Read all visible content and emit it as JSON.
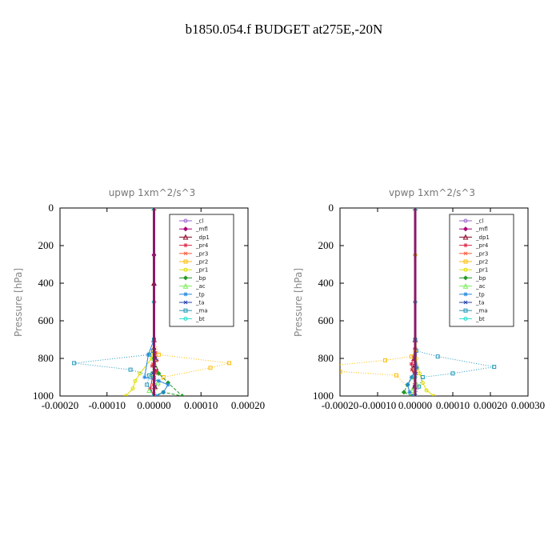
{
  "figure": {
    "title": "b1850.054.f  BUDGET at275E,-20N"
  },
  "legend_labels": [
    "_cl",
    "_mfl",
    "_dp1",
    "_pr4",
    "_pr3",
    "_pr2",
    "_pr1",
    "_bp",
    "_ac",
    "_tp",
    "_ta",
    "_ma",
    "_bt"
  ],
  "chart_data": [
    {
      "type": "line",
      "title": "upwp   1xm^2/s^3",
      "ylabel": "Pressure  [hPa]",
      "ylim": [
        1000,
        0
      ],
      "yticks": [
        0,
        200,
        400,
        600,
        800,
        1000
      ],
      "xlim": [
        -0.0002,
        0.0002
      ],
      "xticks": [
        "-0.00020",
        "-0.00010",
        "0.00000",
        "0.00010",
        "0.00020"
      ],
      "xtick_values": [
        -0.0002,
        -0.0001,
        0,
        0.0001,
        0.0002
      ],
      "legend": "top-right",
      "series": [
        {
          "name": "_cl",
          "color": "#9966cc",
          "x": [
            0,
            0,
            0,
            0,
            0
          ],
          "y": [
            0,
            250,
            500,
            750,
            1000
          ]
        },
        {
          "name": "_mfl",
          "color": "#aa0077",
          "x": [
            0,
            0,
            0,
            0,
            0
          ],
          "y": [
            0,
            250,
            500,
            750,
            1000
          ]
        },
        {
          "name": "_dp1",
          "color": "#880022",
          "x": [
            0,
            0,
            0,
            3e-06,
            4e-06,
            2e-06,
            0
          ],
          "y": [
            0,
            400,
            700,
            800,
            850,
            950,
            1000
          ]
        },
        {
          "name": "_pr4",
          "color": "#dd2244",
          "x": [
            0,
            0,
            3e-06,
            6e-06,
            -4e-06,
            5e-06,
            -3e-06,
            -8e-06,
            0
          ],
          "y": [
            0,
            700,
            770,
            810,
            840,
            870,
            900,
            960,
            1000
          ]
        },
        {
          "name": "_pr3",
          "color": "#ff5533",
          "x": [
            0,
            0,
            2e-06,
            -3e-06,
            3e-06,
            -2e-06,
            0
          ],
          "y": [
            0,
            700,
            780,
            830,
            880,
            940,
            1000
          ]
        },
        {
          "name": "_pr2",
          "color": "#ffbb00",
          "x": [
            0,
            0,
            1e-05,
            0.00016,
            0.00012,
            2e-05,
            0
          ],
          "y": [
            0,
            700,
            780,
            825,
            850,
            900,
            1000
          ]
        },
        {
          "name": "_pr1",
          "color": "#dddd00",
          "x": [
            0,
            0,
            -5e-06,
            -3e-05,
            -4e-05,
            -4.5e-05,
            -6e-05
          ],
          "y": [
            0,
            700,
            800,
            880,
            920,
            960,
            1000
          ]
        },
        {
          "name": "_bp",
          "color": "#229922",
          "x": [
            0,
            0,
            1e-05,
            3e-05,
            6e-05,
            2e-05,
            0
          ],
          "y": [
            0,
            800,
            880,
            930,
            1000,
            980,
            1000
          ]
        },
        {
          "name": "_ac",
          "color": "#77ee55",
          "x": [
            0,
            0,
            -5e-06,
            8e-06,
            -1e-05,
            0
          ],
          "y": [
            0,
            800,
            880,
            930,
            970,
            1000
          ]
        },
        {
          "name": "_tp",
          "color": "#2288dd",
          "x": [
            0,
            0,
            -1.2e-05,
            -2e-05,
            1e-05,
            3e-05,
            2e-05,
            5e-06
          ],
          "y": [
            0,
            700,
            780,
            900,
            920,
            940,
            980,
            1000
          ]
        },
        {
          "name": "_ta",
          "color": "#2244aa",
          "x": [
            0,
            0,
            3e-06,
            -3e-06,
            2e-06,
            0
          ],
          "y": [
            0,
            700,
            800,
            880,
            950,
            1000
          ]
        },
        {
          "name": "_ma",
          "color": "#2299bb",
          "x": [
            0,
            0,
            -2e-06,
            -1e-05,
            -0.00017,
            -5e-05,
            -1e-05,
            -1.5e-05,
            0
          ],
          "y": [
            0,
            700,
            760,
            780,
            825,
            860,
            890,
            940,
            1000
          ]
        },
        {
          "name": "_bt",
          "color": "#22ddcc",
          "x": [
            0,
            0,
            0,
            0
          ],
          "y": [
            0,
            500,
            900,
            1000
          ]
        }
      ]
    },
    {
      "type": "line",
      "title": "vpwp   1xm^2/s^3",
      "ylabel": "Pressure  [hPa]",
      "ylim": [
        1000,
        0
      ],
      "yticks": [
        0,
        200,
        400,
        600,
        800,
        1000
      ],
      "xlim": [
        -0.0002,
        0.0003
      ],
      "xticks": [
        "-0.00020",
        "-0.00010",
        "0.00000",
        "0.00010",
        "0.00020",
        "0.00030"
      ],
      "xtick_values": [
        -0.0002,
        -0.0001,
        0,
        0.0001,
        0.0002,
        0.0003
      ],
      "legend": "top-right",
      "series": [
        {
          "name": "_cl",
          "color": "#9966cc",
          "x": [
            0,
            0,
            0,
            0,
            0
          ],
          "y": [
            0,
            250,
            500,
            750,
            1000
          ]
        },
        {
          "name": "_mfl",
          "color": "#aa0077",
          "x": [
            0,
            0,
            0,
            0,
            0
          ],
          "y": [
            0,
            250,
            500,
            750,
            1000
          ]
        },
        {
          "name": "_dp1",
          "color": "#880022",
          "x": [
            0,
            0,
            -3e-06,
            -5e-06,
            -2e-06,
            0
          ],
          "y": [
            0,
            700,
            800,
            850,
            950,
            1000
          ]
        },
        {
          "name": "_pr4",
          "color": "#dd2244",
          "x": [
            0,
            0,
            -4e-06,
            -1e-05,
            -8e-06,
            -3e-06,
            0
          ],
          "y": [
            0,
            750,
            790,
            830,
            860,
            900,
            1000
          ]
        },
        {
          "name": "_pr3",
          "color": "#ff5533",
          "x": [
            0,
            0,
            -3e-06,
            2e-06,
            -2e-06,
            0
          ],
          "y": [
            0,
            700,
            800,
            870,
            940,
            1000
          ]
        },
        {
          "name": "_pr2",
          "color": "#ffbb00",
          "x": [
            0,
            0,
            -1e-05,
            -8e-05,
            -0.00026,
            -0.0002,
            -5e-05,
            0
          ],
          "y": [
            0,
            760,
            790,
            810,
            845,
            870,
            890,
            1000
          ]
        },
        {
          "name": "_pr1",
          "color": "#dddd00",
          "x": [
            0,
            0,
            3e-06,
            1.2e-05,
            2e-05,
            3e-05,
            5e-05
          ],
          "y": [
            0,
            250,
            800,
            880,
            930,
            970,
            1000
          ]
        },
        {
          "name": "_bp",
          "color": "#229922",
          "x": [
            0,
            0,
            -8e-06,
            -2e-05,
            -3e-05,
            -8e-06,
            0
          ],
          "y": [
            0,
            850,
            900,
            940,
            980,
            1000,
            1000
          ]
        },
        {
          "name": "_ac",
          "color": "#77ee55",
          "x": [
            0,
            0,
            -4e-06,
            5e-06,
            -8e-06,
            0
          ],
          "y": [
            0,
            850,
            900,
            940,
            970,
            1000
          ]
        },
        {
          "name": "_tp",
          "color": "#2288dd",
          "x": [
            0,
            0,
            5e-06,
            -1e-05,
            -2e-05,
            -1.5e-05,
            -5e-06
          ],
          "y": [
            0,
            780,
            850,
            900,
            940,
            980,
            1000
          ]
        },
        {
          "name": "_ta",
          "color": "#2244aa",
          "x": [
            0,
            0,
            -2e-06,
            2e-06,
            -2e-06,
            0
          ],
          "y": [
            0,
            700,
            800,
            880,
            950,
            1000
          ]
        },
        {
          "name": "_ma",
          "color": "#2299bb",
          "x": [
            0,
            0,
            3e-06,
            6e-05,
            0.00021,
            0.0001,
            2e-05,
            1e-05,
            0
          ],
          "y": [
            0,
            700,
            760,
            790,
            845,
            880,
            900,
            950,
            1000
          ]
        },
        {
          "name": "_bt",
          "color": "#22ddcc",
          "x": [
            0,
            0,
            0,
            0
          ],
          "y": [
            0,
            500,
            900,
            1000
          ]
        }
      ]
    }
  ]
}
